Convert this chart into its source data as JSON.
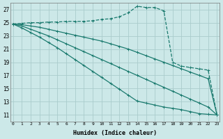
{
  "xlabel": "Humidex (Indice chaleur)",
  "bg_color": "#cce8e8",
  "grid_color": "#aacccc",
  "line_color": "#1a7a6e",
  "x_ticks": [
    0,
    1,
    2,
    3,
    4,
    5,
    6,
    7,
    8,
    9,
    10,
    11,
    12,
    13,
    14,
    15,
    16,
    17,
    18,
    19,
    20,
    21,
    22,
    23
  ],
  "y_ticks": [
    11,
    13,
    15,
    17,
    19,
    21,
    23,
    25,
    27
  ],
  "xlim": [
    -0.3,
    23.3
  ],
  "ylim": [
    10.0,
    28.0
  ],
  "series": [
    {
      "x": [
        0,
        1,
        2,
        3,
        4,
        5,
        6,
        7,
        8,
        9,
        10,
        11,
        12,
        13,
        14,
        15,
        16,
        17,
        18,
        19,
        20,
        21,
        22,
        23
      ],
      "y": [
        24.8,
        24.9,
        25.0,
        25.0,
        25.1,
        25.1,
        25.2,
        25.2,
        25.2,
        25.3,
        25.5,
        25.6,
        25.9,
        26.5,
        27.5,
        27.3,
        27.3,
        26.8,
        19.0,
        18.4,
        18.2,
        18.0,
        17.8,
        11.0
      ],
      "dashed": true
    },
    {
      "x": [
        0,
        1,
        2,
        3,
        4,
        5,
        6,
        7,
        8,
        9,
        10,
        11,
        12,
        13,
        14,
        15,
        16,
        17,
        18,
        19,
        20,
        21,
        22,
        23
      ],
      "y": [
        24.8,
        24.7,
        24.5,
        24.3,
        24.0,
        23.7,
        23.4,
        23.1,
        22.8,
        22.5,
        22.2,
        21.8,
        21.4,
        21.0,
        20.5,
        20.0,
        19.5,
        19.0,
        18.5,
        18.0,
        17.5,
        17.0,
        16.5,
        11.0
      ],
      "dashed": false
    },
    {
      "x": [
        0,
        1,
        2,
        3,
        4,
        5,
        6,
        7,
        8,
        9,
        10,
        11,
        12,
        13,
        14,
        15,
        16,
        17,
        18,
        19,
        20,
        21,
        22,
        23
      ],
      "y": [
        24.8,
        24.5,
        24.0,
        23.5,
        23.0,
        22.4,
        21.8,
        21.2,
        20.6,
        20.0,
        19.4,
        18.8,
        18.2,
        17.6,
        17.0,
        16.4,
        15.8,
        15.2,
        14.6,
        14.0,
        13.4,
        12.8,
        12.2,
        11.0
      ],
      "dashed": false
    },
    {
      "x": [
        0,
        1,
        2,
        3,
        4,
        5,
        6,
        7,
        8,
        9,
        10,
        11,
        12,
        13,
        14,
        15,
        16,
        17,
        18,
        19,
        20,
        21,
        22,
        23
      ],
      "y": [
        24.8,
        24.2,
        23.5,
        22.8,
        22.0,
        21.2,
        20.3,
        19.4,
        18.5,
        17.6,
        16.7,
        15.8,
        14.9,
        14.0,
        13.1,
        12.8,
        12.5,
        12.2,
        12.0,
        11.8,
        11.5,
        11.2,
        11.1,
        11.0
      ],
      "dashed": false
    }
  ]
}
